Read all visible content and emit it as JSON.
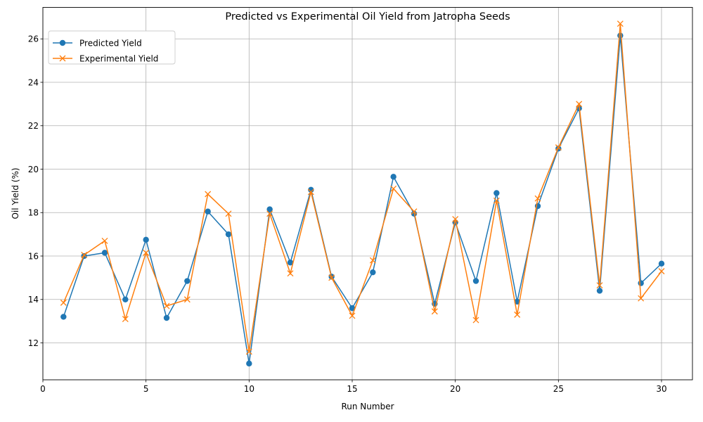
{
  "chart_data": {
    "type": "line",
    "title": "Predicted vs Experimental Oil Yield from Jatropha Seeds",
    "xlabel": "Run Number",
    "ylabel": "Oil Yield (%)",
    "xlim": [
      0,
      31.5
    ],
    "ylim": [
      10.3,
      27.45
    ],
    "xticks": [
      0,
      5,
      10,
      15,
      20,
      25,
      30
    ],
    "yticks": [
      12,
      14,
      16,
      18,
      20,
      22,
      24,
      26
    ],
    "grid": true,
    "legend_position": "top-left",
    "x": [
      1,
      2,
      3,
      4,
      5,
      6,
      7,
      8,
      9,
      10,
      11,
      12,
      13,
      14,
      15,
      16,
      17,
      18,
      19,
      20,
      21,
      22,
      23,
      24,
      25,
      26,
      27,
      28,
      29,
      30
    ],
    "series": [
      {
        "name": "Predicted Yield",
        "color": "#1f77b4",
        "marker": "circle",
        "values": [
          13.2,
          16.0,
          16.15,
          14.0,
          16.75,
          13.15,
          14.85,
          18.05,
          17.0,
          11.05,
          18.15,
          15.7,
          19.05,
          15.05,
          13.6,
          15.25,
          19.65,
          17.95,
          13.8,
          17.55,
          14.85,
          18.9,
          13.9,
          18.3,
          20.95,
          22.8,
          14.4,
          26.15,
          14.75,
          15.65
        ]
      },
      {
        "name": "Experimental Yield",
        "color": "#ff7f0e",
        "marker": "x",
        "values": [
          13.85,
          16.05,
          16.7,
          13.1,
          16.15,
          13.7,
          14.0,
          18.85,
          17.95,
          11.6,
          17.95,
          15.2,
          18.95,
          15.0,
          13.25,
          15.8,
          19.1,
          18.05,
          13.45,
          17.7,
          13.05,
          18.55,
          13.3,
          18.65,
          21.0,
          23.0,
          14.65,
          26.7,
          14.05,
          15.3
        ]
      }
    ]
  }
}
